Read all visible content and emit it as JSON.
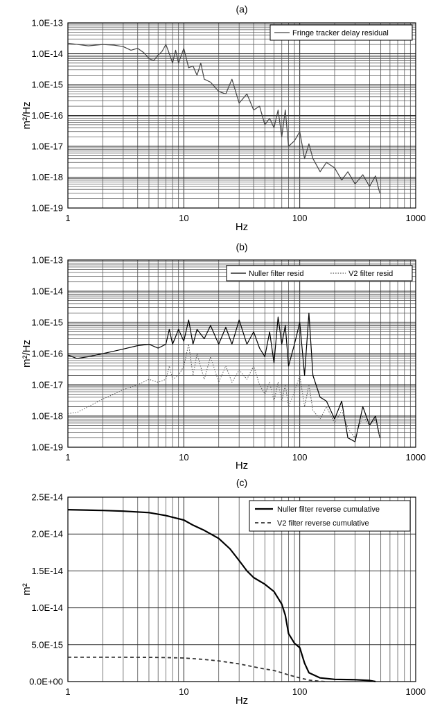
{
  "chart_data": [
    {
      "panel": "(a)",
      "type": "line",
      "x_scale": "log",
      "y_scale": "log",
      "xlabel": "Hz",
      "ylabel": "m²/Hz",
      "xlim": [
        1,
        1000
      ],
      "ylim": [
        1e-19,
        1e-13
      ],
      "x_tick_labels": [
        "1",
        "10",
        "100",
        "1000"
      ],
      "y_tick_labels": [
        "1.0E-19",
        "1.0E-18",
        "1.0E-17",
        "1.0E-16",
        "1.0E-15",
        "1.0E-14",
        "1.0E-13"
      ],
      "grid": true,
      "legend_position": "top-right",
      "series": [
        {
          "name": "Fringe tracker delay residual",
          "style": "solid",
          "color": "#444444",
          "x": [
            1,
            1.5,
            2,
            2.5,
            3,
            3.5,
            4,
            4.5,
            5,
            5.5,
            6,
            6.5,
            7,
            7.5,
            8,
            8.5,
            9,
            10,
            11,
            12,
            13,
            14,
            15,
            17,
            20,
            23,
            26,
            30,
            35,
            40,
            45,
            50,
            55,
            60,
            65,
            70,
            75,
            80,
            90,
            100,
            110,
            120,
            130,
            150,
            170,
            200,
            230,
            260,
            300,
            350,
            400,
            450,
            490
          ],
          "y": [
            2.2e-14,
            1.8e-14,
            2e-14,
            1.9e-14,
            1.7e-14,
            1.3e-14,
            1.5e-14,
            1.1e-14,
            7e-15,
            6e-15,
            9e-15,
            1.2e-14,
            2e-14,
            1e-14,
            5e-15,
            1.3e-14,
            5e-15,
            1.5e-14,
            3.5e-15,
            4e-15,
            2e-15,
            5e-15,
            1.5e-15,
            1.2e-15,
            6e-16,
            5e-16,
            1.5e-15,
            2.5e-16,
            5e-16,
            1.5e-16,
            2e-16,
            5e-17,
            8e-17,
            4e-17,
            1.5e-16,
            2e-17,
            1.5e-16,
            1e-17,
            1.5e-17,
            3e-17,
            4e-18,
            1.2e-17,
            4e-18,
            1.5e-18,
            3e-18,
            2e-18,
            8e-19,
            1.5e-18,
            6e-19,
            1.2e-18,
            5e-19,
            1.1e-18,
            3e-19
          ]
        }
      ]
    },
    {
      "panel": "(b)",
      "type": "line",
      "x_scale": "log",
      "y_scale": "log",
      "xlabel": "Hz",
      "ylabel": "m²/Hz",
      "xlim": [
        1,
        1000
      ],
      "ylim": [
        1e-19,
        1e-13
      ],
      "x_tick_labels": [
        "1",
        "10",
        "100",
        "1000"
      ],
      "y_tick_labels": [
        "1.0E-19",
        "1.0E-18",
        "1.0E-17",
        "1.0E-16",
        "1.0E-15",
        "1.0E-14",
        "1.0E-13"
      ],
      "grid": true,
      "legend_position": "top-right",
      "series": [
        {
          "name": "Nuller filter resid",
          "style": "solid",
          "color": "#000000",
          "x": [
            1,
            1.2,
            1.5,
            2,
            2.5,
            3,
            4,
            5,
            6,
            7,
            7.5,
            8,
            9,
            10,
            11,
            12,
            13,
            15,
            17,
            20,
            23,
            26,
            30,
            35,
            40,
            45,
            50,
            55,
            60,
            65,
            70,
            75,
            80,
            90,
            100,
            110,
            120,
            130,
            150,
            170,
            200,
            230,
            260,
            300,
            350,
            400,
            450,
            490
          ],
          "y": [
            9e-17,
            7e-17,
            8e-17,
            1e-16,
            1.2e-16,
            1.4e-16,
            1.8e-16,
            2e-16,
            1.5e-16,
            2e-16,
            6e-16,
            2e-16,
            6e-16,
            2.5e-16,
            1.2e-15,
            2e-16,
            6e-16,
            3e-16,
            8e-16,
            2e-16,
            7e-16,
            2e-16,
            1.2e-15,
            2e-16,
            5e-16,
            1.5e-16,
            8e-17,
            5e-16,
            5e-17,
            1.5e-15,
            2e-16,
            8e-16,
            4e-17,
            2e-16,
            1e-15,
            2e-17,
            2e-15,
            2e-17,
            4e-18,
            3e-18,
            8e-19,
            3e-18,
            2e-19,
            1.5e-19,
            2e-18,
            5e-19,
            1e-18,
            2e-19
          ]
        },
        {
          "name": "V2 filter resid",
          "style": "dotted",
          "color": "#555555",
          "x": [
            1,
            1.2,
            1.5,
            2,
            2.5,
            3,
            4,
            5,
            6,
            7,
            7.5,
            8,
            9,
            10,
            11,
            12,
            13,
            15,
            17,
            20,
            23,
            26,
            30,
            35,
            40,
            45,
            50,
            55,
            60,
            65,
            70,
            75,
            80,
            90,
            100,
            110,
            120,
            130,
            150,
            170,
            200,
            230,
            260,
            300,
            350,
            400,
            450,
            490
          ],
          "y": [
            1.2e-18,
            1.3e-18,
            2e-18,
            3.5e-18,
            5e-18,
            7e-18,
            1e-17,
            1.5e-17,
            1.2e-17,
            1.5e-17,
            4e-17,
            1.5e-17,
            2e-17,
            4e-17,
            2e-16,
            2e-17,
            1e-16,
            1.5e-17,
            8e-17,
            1.2e-17,
            4e-17,
            1.2e-17,
            3e-17,
            1.5e-17,
            4e-17,
            1e-17,
            5e-18,
            1.2e-17,
            3e-18,
            1.2e-17,
            3e-18,
            1e-17,
            2e-18,
            6e-18,
            2e-17,
            2e-18,
            1e-17,
            1.5e-18,
            8e-19,
            2e-18,
            6e-19,
            1.5e-18,
            4e-19,
            2e-19,
            1e-18,
            5e-19,
            8e-19,
            2e-19
          ]
        }
      ]
    },
    {
      "panel": "(c)",
      "type": "line",
      "x_scale": "log",
      "y_scale": "linear",
      "xlabel": "Hz",
      "ylabel": "m²",
      "xlim": [
        1,
        1000
      ],
      "ylim": [
        0,
        2.5e-14
      ],
      "x_tick_labels": [
        "1",
        "10",
        "100",
        "1000"
      ],
      "y_tick_values": [
        0,
        5e-15,
        1e-14,
        1.5e-14,
        2e-14,
        2.5e-14
      ],
      "y_tick_labels": [
        "0.0E+00",
        "5.0E-15",
        "1.0E-14",
        "1.5E-14",
        "2.0E-14",
        "2.5E-14"
      ],
      "grid": true,
      "legend_position": "top-right",
      "series": [
        {
          "name": "Nuller filter reverse cumulative",
          "style": "solid",
          "color": "#000000",
          "x": [
            1,
            2,
            3,
            5,
            7,
            10,
            12,
            15,
            20,
            25,
            30,
            35,
            40,
            50,
            60,
            70,
            75,
            80,
            90,
            100,
            110,
            120,
            150,
            200,
            300,
            400,
            450
          ],
          "y": [
            2.33e-14,
            2.32e-14,
            2.31e-14,
            2.29e-14,
            2.25e-14,
            2.19e-14,
            2.12e-14,
            2.05e-14,
            1.94e-14,
            1.8e-14,
            1.64e-14,
            1.5e-14,
            1.41e-14,
            1.32e-14,
            1.22e-14,
            1.05e-14,
            9e-15,
            6.5e-15,
            5.2e-15,
            4.6e-15,
            2.5e-15,
            1.2e-15,
            5e-16,
            3e-16,
            2.5e-16,
            1.5e-16,
            0
          ]
        },
        {
          "name": "V2 filter reverse cumulative",
          "style": "dashed",
          "color": "#333333",
          "x": [
            1,
            2,
            3,
            5,
            7,
            10,
            15,
            20,
            30,
            40,
            50,
            60,
            70,
            80,
            100,
            120,
            150,
            170
          ],
          "y": [
            3.3e-15,
            3.3e-15,
            3.3e-15,
            3.28e-15,
            3.25e-15,
            3.2e-15,
            3e-15,
            2.8e-15,
            2.4e-15,
            2e-15,
            1.7e-15,
            1.5e-15,
            1.2e-15,
            9e-16,
            5e-16,
            2e-16,
            5e-17,
            0
          ]
        }
      ]
    }
  ]
}
